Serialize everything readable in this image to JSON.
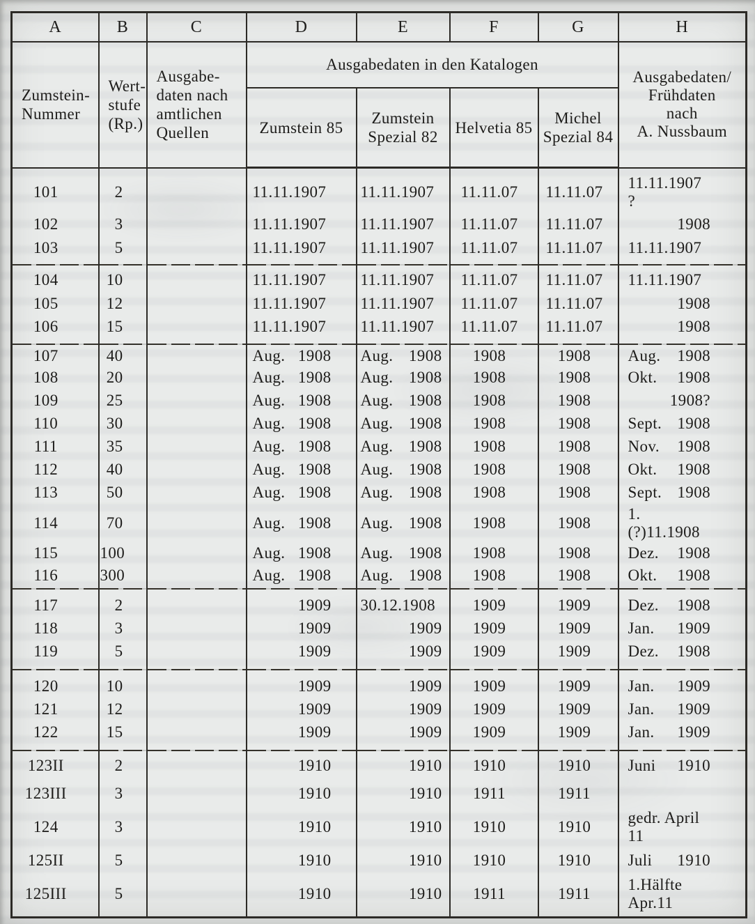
{
  "colors": {
    "paper": "#e9ebea",
    "ink": "#1d1c1a",
    "rule": "#2c2a26"
  },
  "table": {
    "column_letters": [
      "A",
      "B",
      "C",
      "D",
      "E",
      "F",
      "G",
      "H"
    ],
    "headers": {
      "col_a_lines": [
        "Zumstein-",
        "Nummer"
      ],
      "col_b_lines": [
        "Wert-",
        "stufe",
        "(Rp.)"
      ],
      "col_c_lines": [
        "Ausgabe-",
        "daten nach",
        "amtlichen",
        "Quellen"
      ],
      "group_label": "Ausgabedaten in den Katalogen",
      "catalog_d_lines": [
        "Zumstein 85"
      ],
      "catalog_e_lines": [
        "Zumstein",
        "Spezial 82"
      ],
      "catalog_f_lines": [
        "Helvetia 85"
      ],
      "catalog_g_lines": [
        "Michel",
        "Spezial 84"
      ],
      "col_h_lines": [
        "Ausgabedaten/",
        "Frühdaten",
        "nach",
        "A. Nussbaum"
      ]
    },
    "groups": [
      {
        "rows": [
          {
            "a": "101",
            "b": "2",
            "c": "",
            "d": {
              "text": "11.11.1907"
            },
            "e": {
              "text": "11.11.1907"
            },
            "f": "11.11.07",
            "g": "11.11.07",
            "h": {
              "text": "11.11.1907 ?"
            }
          },
          {
            "a": "102",
            "b": "3",
            "c": "",
            "d": {
              "text": "11.11.1907"
            },
            "e": {
              "text": "11.11.1907"
            },
            "f": "11.11.07",
            "g": "11.11.07",
            "h": {
              "year": "1908"
            }
          },
          {
            "a": "103",
            "b": "5",
            "c": "",
            "d": {
              "text": "11.11.1907"
            },
            "e": {
              "text": "11.11.1907"
            },
            "f": "11.11.07",
            "g": "11.11.07",
            "h": {
              "text": "11.11.1907"
            }
          }
        ]
      },
      {
        "rows": [
          {
            "a": "104",
            "b": "10",
            "c": "",
            "d": {
              "text": "11.11.1907"
            },
            "e": {
              "text": "11.11.1907"
            },
            "f": "11.11.07",
            "g": "11.11.07",
            "h": {
              "text": "11.11.1907"
            }
          },
          {
            "a": "105",
            "b": "12",
            "c": "",
            "d": {
              "text": "11.11.1907"
            },
            "e": {
              "text": "11.11.1907"
            },
            "f": "11.11.07",
            "g": "11.11.07",
            "h": {
              "year": "1908"
            }
          },
          {
            "a": "106",
            "b": "15",
            "c": "",
            "d": {
              "text": "11.11.1907"
            },
            "e": {
              "text": "11.11.1907"
            },
            "f": "11.11.07",
            "g": "11.11.07",
            "h": {
              "year": "1908"
            }
          }
        ]
      },
      {
        "rows": [
          {
            "a": "107",
            "b": "40",
            "c": "",
            "d": {
              "month": "Aug.",
              "year": "1908"
            },
            "e": {
              "month": "Aug.",
              "year": "1908"
            },
            "f": "1908",
            "g": "1908",
            "h": {
              "month": "Aug.",
              "year": "1908"
            }
          },
          {
            "a": "108",
            "b": "20",
            "c": "",
            "d": {
              "month": "Aug.",
              "year": "1908"
            },
            "e": {
              "month": "Aug.",
              "year": "1908"
            },
            "f": "1908",
            "g": "1908",
            "h": {
              "month": "Okt.",
              "year": "1908"
            }
          },
          {
            "a": "109",
            "b": "25",
            "c": "",
            "d": {
              "month": "Aug.",
              "year": "1908"
            },
            "e": {
              "month": "Aug.",
              "year": "1908"
            },
            "f": "1908",
            "g": "1908",
            "h": {
              "year": "1908?"
            }
          },
          {
            "a": "110",
            "b": "30",
            "c": "",
            "d": {
              "month": "Aug.",
              "year": "1908"
            },
            "e": {
              "month": "Aug.",
              "year": "1908"
            },
            "f": "1908",
            "g": "1908",
            "h": {
              "month": "Sept.",
              "year": "1908"
            }
          },
          {
            "a": "111",
            "b": "35",
            "c": "",
            "d": {
              "month": "Aug.",
              "year": "1908"
            },
            "e": {
              "month": "Aug.",
              "year": "1908"
            },
            "f": "1908",
            "g": "1908",
            "h": {
              "month": "Nov.",
              "year": "1908"
            }
          },
          {
            "a": "112",
            "b": "40",
            "c": "",
            "d": {
              "month": "Aug.",
              "year": "1908"
            },
            "e": {
              "month": "Aug.",
              "year": "1908"
            },
            "f": "1908",
            "g": "1908",
            "h": {
              "month": "Okt.",
              "year": "1908"
            }
          },
          {
            "a": "113",
            "b": "50",
            "c": "",
            "d": {
              "month": "Aug.",
              "year": "1908"
            },
            "e": {
              "month": "Aug.",
              "year": "1908"
            },
            "f": "1908",
            "g": "1908",
            "h": {
              "month": "Sept.",
              "year": "1908"
            }
          },
          {
            "a": "114",
            "b": "70",
            "c": "",
            "d": {
              "month": "Aug.",
              "year": "1908"
            },
            "e": {
              "month": "Aug.",
              "year": "1908"
            },
            "f": "1908",
            "g": "1908",
            "h": {
              "text": "1.(?)11.1908"
            }
          },
          {
            "a": "115",
            "b": "100",
            "c": "",
            "d": {
              "month": "Aug.",
              "year": "1908"
            },
            "e": {
              "month": "Aug.",
              "year": "1908"
            },
            "f": "1908",
            "g": "1908",
            "h": {
              "month": "Dez.",
              "year": "1908"
            }
          },
          {
            "a": "116",
            "b": "300",
            "c": "",
            "d": {
              "month": "Aug.",
              "year": "1908"
            },
            "e": {
              "month": "Aug.",
              "year": "1908"
            },
            "f": "1908",
            "g": "1908",
            "h": {
              "month": "Okt.",
              "year": "1908"
            }
          }
        ]
      },
      {
        "rows": [
          {
            "a": "117",
            "b": "2",
            "c": "",
            "d": {
              "year": "1909"
            },
            "e": {
              "text": "30.12.1908"
            },
            "f": "1909",
            "g": "1909",
            "h": {
              "month": "Dez.",
              "year": "1908"
            }
          },
          {
            "a": "118",
            "b": "3",
            "c": "",
            "d": {
              "year": "1909"
            },
            "e": {
              "year": "1909"
            },
            "f": "1909",
            "g": "1909",
            "h": {
              "month": "Jan.",
              "year": "1909"
            }
          },
          {
            "a": "119",
            "b": "5",
            "c": "",
            "d": {
              "year": "1909"
            },
            "e": {
              "year": "1909"
            },
            "f": "1909",
            "g": "1909",
            "h": {
              "month": "Dez.",
              "year": "1908"
            }
          }
        ]
      },
      {
        "rows": [
          {
            "a": "120",
            "b": "10",
            "c": "",
            "d": {
              "year": "1909"
            },
            "e": {
              "year": "1909"
            },
            "f": "1909",
            "g": "1909",
            "h": {
              "month": "Jan.",
              "year": "1909"
            }
          },
          {
            "a": "121",
            "b": "12",
            "c": "",
            "d": {
              "year": "1909"
            },
            "e": {
              "year": "1909"
            },
            "f": "1909",
            "g": "1909",
            "h": {
              "month": "Jan.",
              "year": "1909"
            }
          },
          {
            "a": "122",
            "b": "15",
            "c": "",
            "d": {
              "year": "1909"
            },
            "e": {
              "year": "1909"
            },
            "f": "1909",
            "g": "1909",
            "h": {
              "month": "Jan.",
              "year": "1909"
            }
          }
        ]
      },
      {
        "rows": [
          {
            "a": "123II",
            "b": "2",
            "c": "",
            "d": {
              "year": "1910"
            },
            "e": {
              "year": "1910"
            },
            "f": "1910",
            "g": "1910",
            "h": {
              "month": "Juni",
              "year": "1910"
            }
          },
          {
            "a": "123III",
            "b": "3",
            "c": "",
            "d": {
              "year": "1910"
            },
            "e": {
              "year": "1910"
            },
            "f": "1911",
            "g": "1911",
            "h": null
          },
          {
            "a": "124",
            "b": "3",
            "c": "",
            "d": {
              "year": "1910"
            },
            "e": {
              "year": "1910"
            },
            "f": "1910",
            "g": "1910",
            "h": {
              "text": "gedr. April 11"
            }
          },
          {
            "a": "125II",
            "b": "5",
            "c": "",
            "d": {
              "year": "1910"
            },
            "e": {
              "year": "1910"
            },
            "f": "1910",
            "g": "1910",
            "h": {
              "month": "Juli",
              "year": "1910"
            }
          },
          {
            "a": "125III",
            "b": "5",
            "c": "",
            "d": {
              "year": "1910"
            },
            "e": {
              "year": "1910"
            },
            "f": "1911",
            "g": "1911",
            "h": {
              "text": "1.Hälfte Apr.11"
            }
          }
        ]
      }
    ]
  }
}
